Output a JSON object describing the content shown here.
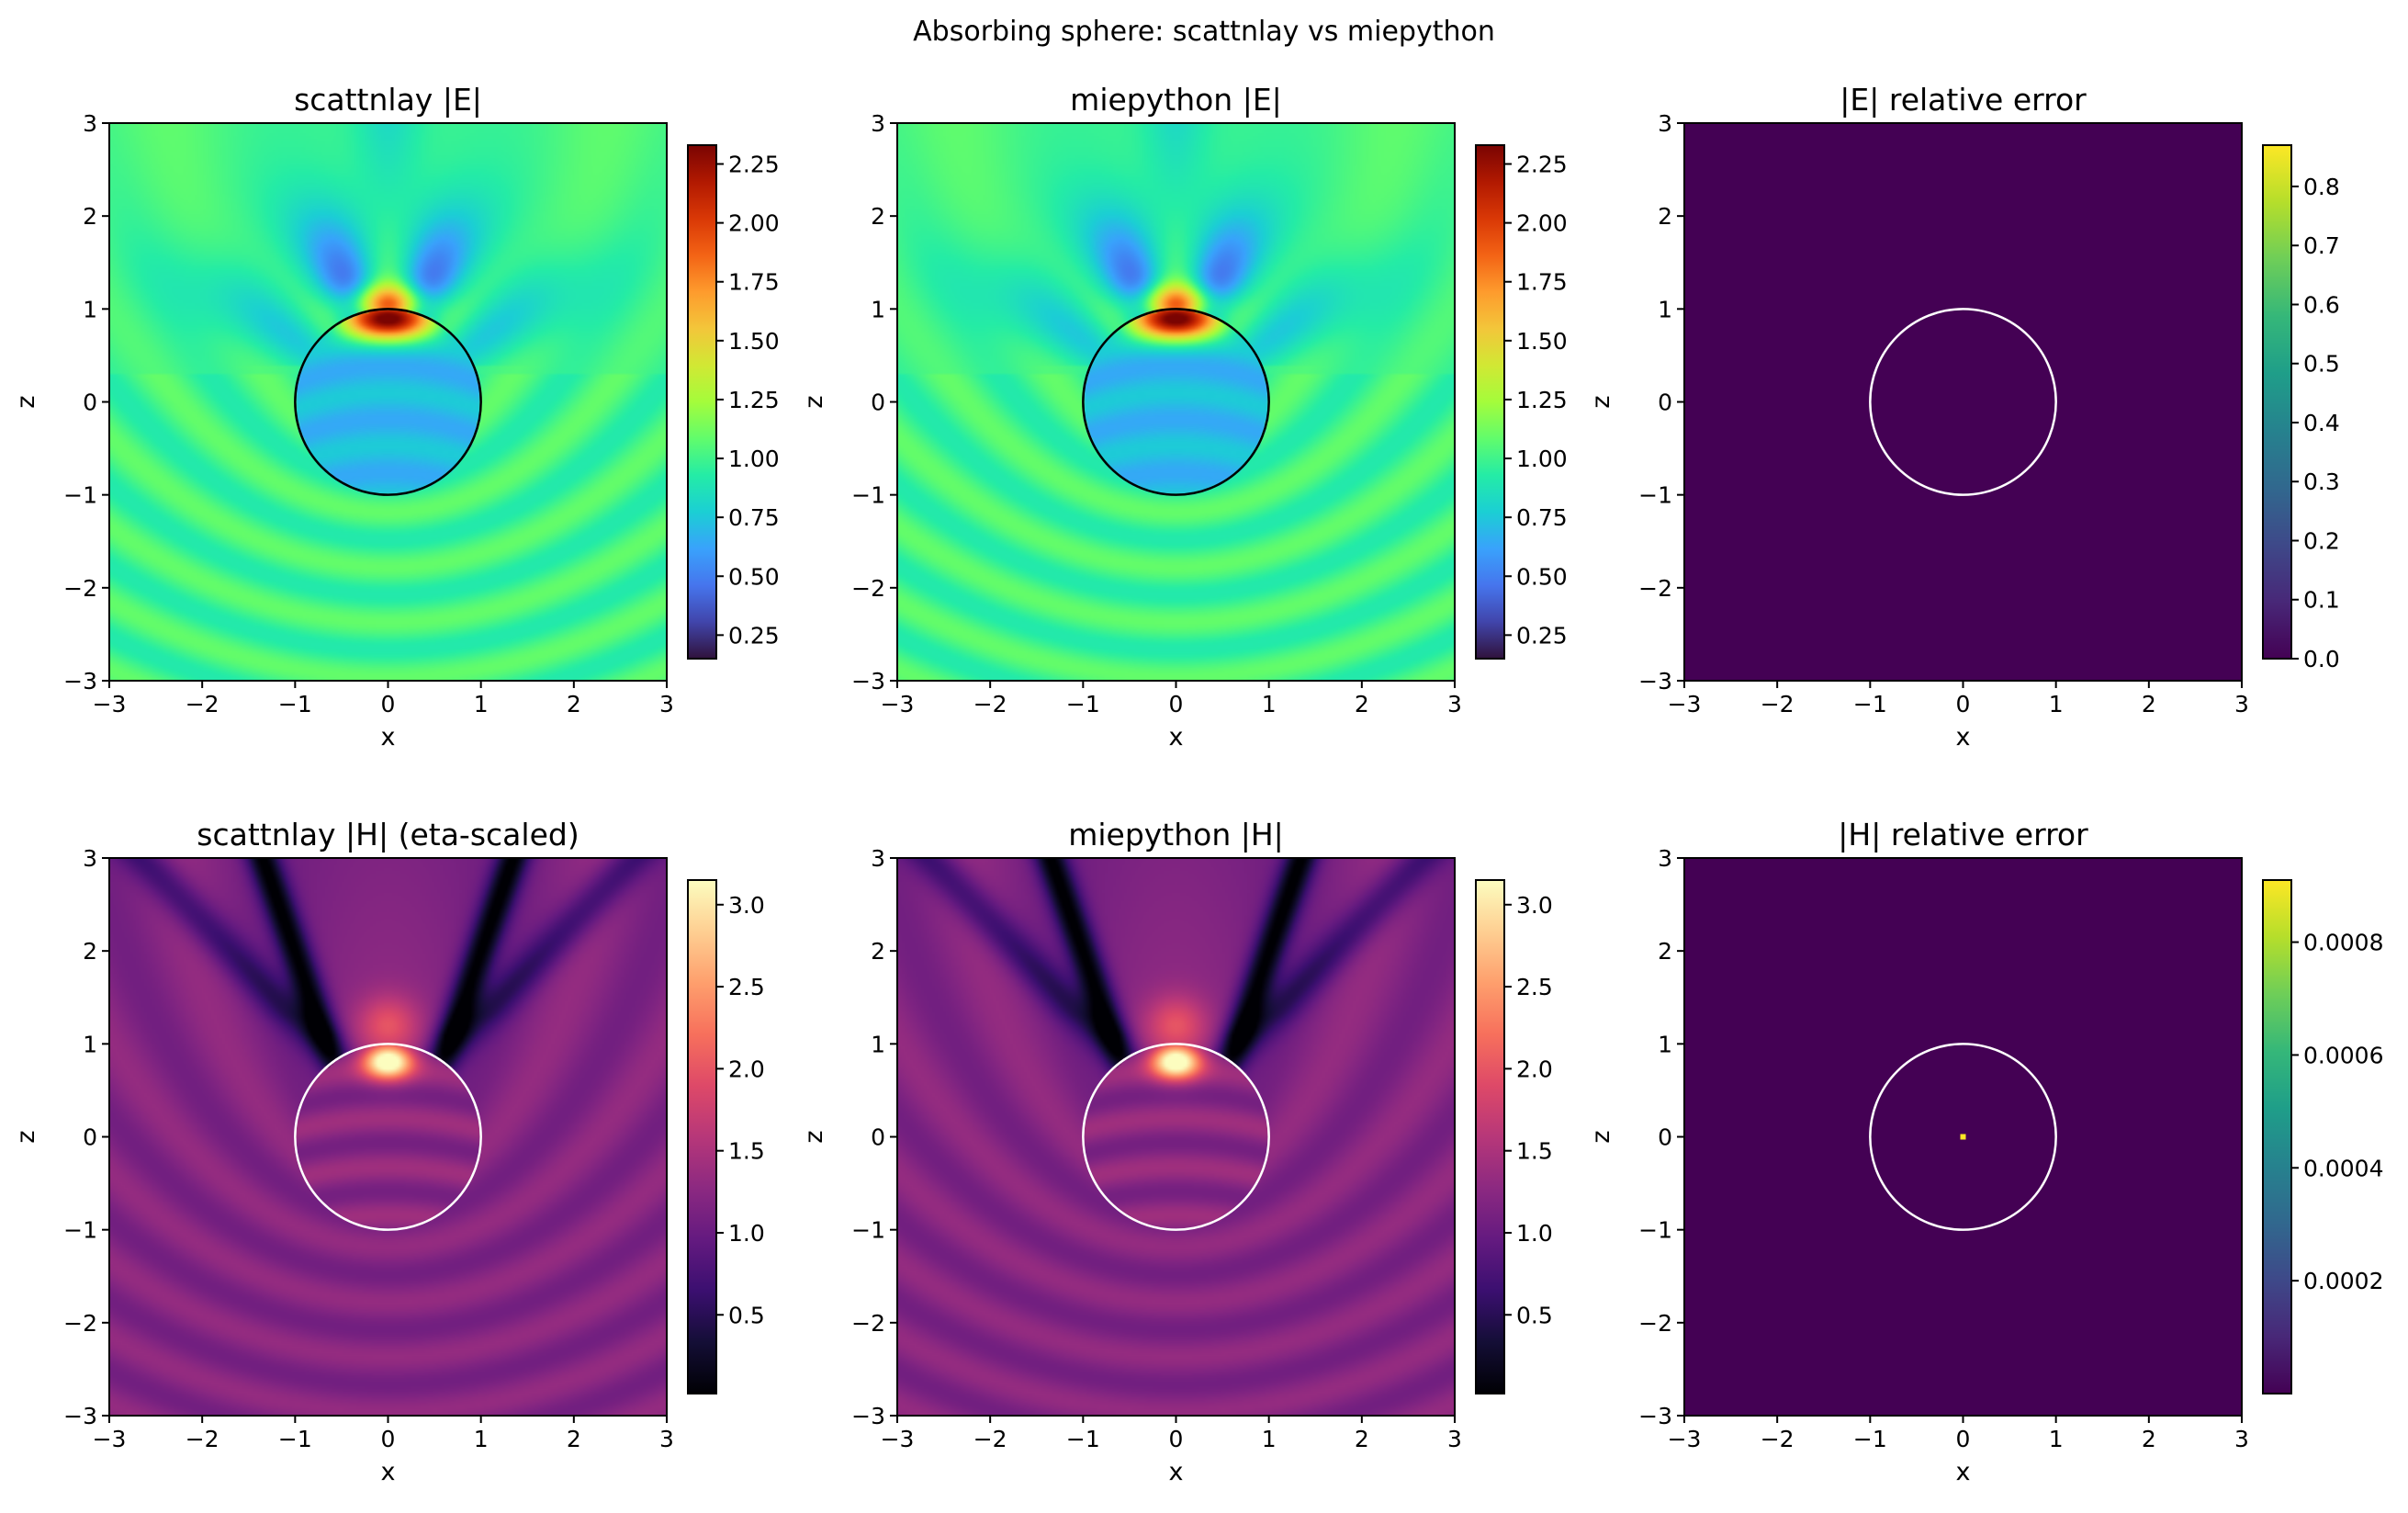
{
  "figure": {
    "title": "Absorbing sphere: scattnlay vs miepython"
  },
  "colors": {
    "turbo": [
      "#30123b",
      "#4145ab",
      "#4675ed",
      "#39a2fc",
      "#1bcfd4",
      "#24eca6",
      "#61fc6c",
      "#a4fc3b",
      "#d1e834",
      "#f3c63a",
      "#fe9b2d",
      "#f36315",
      "#d93806",
      "#b11901",
      "#7a0402"
    ],
    "magma": [
      "#000004",
      "#140e36",
      "#3b0f70",
      "#641a80",
      "#8c2981",
      "#b73779",
      "#de4968",
      "#f7705c",
      "#fe9f6d",
      "#fecf92",
      "#fcfdbf"
    ],
    "viridis": [
      "#440154",
      "#482878",
      "#3e4989",
      "#31688e",
      "#26828e",
      "#1f9e89",
      "#35b779",
      "#6ece58",
      "#b5de2b",
      "#fde725"
    ],
    "circle_dark": "#000000",
    "circle_light": "#ffffff"
  },
  "chart_data": [
    {
      "id": "e-scattnlay",
      "type": "heatmap",
      "title": "scattnlay |E|",
      "xlabel": "x",
      "ylabel": "z",
      "xlim": [
        -3,
        3
      ],
      "ylim": [
        -3,
        3
      ],
      "xticks": [
        "−3",
        "−2",
        "−1",
        "0",
        "1",
        "2",
        "3"
      ],
      "yticks": [
        "−3",
        "−2",
        "−1",
        "0",
        "1",
        "2",
        "3"
      ],
      "colormap": "turbo",
      "field": "E",
      "circle_color": "#000000",
      "sphere_radius": 1,
      "colorbar": {
        "min": 0.15,
        "max": 2.33,
        "ticks": [
          0.25,
          0.5,
          0.75,
          1.0,
          1.25,
          1.5,
          1.75,
          2.0,
          2.25
        ],
        "labels": [
          "0.25",
          "0.50",
          "0.75",
          "1.00",
          "1.25",
          "1.50",
          "1.75",
          "2.00",
          "2.25"
        ]
      }
    },
    {
      "id": "e-miepython",
      "type": "heatmap",
      "title": "miepython |E|",
      "xlabel": "x",
      "ylabel": "z",
      "xlim": [
        -3,
        3
      ],
      "ylim": [
        -3,
        3
      ],
      "xticks": [
        "−3",
        "−2",
        "−1",
        "0",
        "1",
        "2",
        "3"
      ],
      "yticks": [
        "−3",
        "−2",
        "−1",
        "0",
        "1",
        "2",
        "3"
      ],
      "colormap": "turbo",
      "field": "E",
      "circle_color": "#000000",
      "sphere_radius": 1,
      "colorbar": {
        "min": 0.15,
        "max": 2.33,
        "ticks": [
          0.25,
          0.5,
          0.75,
          1.0,
          1.25,
          1.5,
          1.75,
          2.0,
          2.25
        ],
        "labels": [
          "0.25",
          "0.50",
          "0.75",
          "1.00",
          "1.25",
          "1.50",
          "1.75",
          "2.00",
          "2.25"
        ]
      }
    },
    {
      "id": "e-error",
      "type": "heatmap",
      "title": "|E| relative error",
      "xlabel": "x",
      "ylabel": "z",
      "xlim": [
        -3,
        3
      ],
      "ylim": [
        -3,
        3
      ],
      "xticks": [
        "−3",
        "−2",
        "−1",
        "0",
        "1",
        "2",
        "3"
      ],
      "yticks": [
        "−3",
        "−2",
        "−1",
        "0",
        "1",
        "2",
        "3"
      ],
      "colormap": "viridis",
      "field": "error",
      "circle_color": "#ffffff",
      "sphere_radius": 1,
      "colorbar": {
        "min": 0.0,
        "max": 0.87,
        "ticks": [
          0.0,
          0.1,
          0.2,
          0.3,
          0.4,
          0.5,
          0.6,
          0.7,
          0.8
        ],
        "labels": [
          "0.0",
          "0.1",
          "0.2",
          "0.3",
          "0.4",
          "0.5",
          "0.6",
          "0.7",
          "0.8"
        ]
      }
    },
    {
      "id": "h-scattnlay",
      "type": "heatmap",
      "title": "scattnlay |H| (eta-scaled)",
      "xlabel": "x",
      "ylabel": "z",
      "xlim": [
        -3,
        3
      ],
      "ylim": [
        -3,
        3
      ],
      "xticks": [
        "−3",
        "−2",
        "−1",
        "0",
        "1",
        "2",
        "3"
      ],
      "yticks": [
        "−3",
        "−2",
        "−1",
        "0",
        "1",
        "2",
        "3"
      ],
      "colormap": "magma",
      "field": "H",
      "circle_color": "#ffffff",
      "sphere_radius": 1,
      "colorbar": {
        "min": 0.02,
        "max": 3.15,
        "ticks": [
          0.5,
          1.0,
          1.5,
          2.0,
          2.5,
          3.0
        ],
        "labels": [
          "0.5",
          "1.0",
          "1.5",
          "2.0",
          "2.5",
          "3.0"
        ]
      }
    },
    {
      "id": "h-miepython",
      "type": "heatmap",
      "title": "miepython |H|",
      "xlabel": "x",
      "ylabel": "z",
      "xlim": [
        -3,
        3
      ],
      "ylim": [
        -3,
        3
      ],
      "xticks": [
        "−3",
        "−2",
        "−1",
        "0",
        "1",
        "2",
        "3"
      ],
      "yticks": [
        "−3",
        "−2",
        "−1",
        "0",
        "1",
        "2",
        "3"
      ],
      "colormap": "magma",
      "field": "H",
      "circle_color": "#ffffff",
      "sphere_radius": 1,
      "colorbar": {
        "min": 0.02,
        "max": 3.15,
        "ticks": [
          0.5,
          1.0,
          1.5,
          2.0,
          2.5,
          3.0
        ],
        "labels": [
          "0.5",
          "1.0",
          "1.5",
          "2.0",
          "2.5",
          "3.0"
        ]
      }
    },
    {
      "id": "h-error",
      "type": "heatmap",
      "title": "|H| relative error",
      "xlabel": "x",
      "ylabel": "z",
      "xlim": [
        -3,
        3
      ],
      "ylim": [
        -3,
        3
      ],
      "xticks": [
        "−3",
        "−2",
        "−1",
        "0",
        "1",
        "2",
        "3"
      ],
      "yticks": [
        "−3",
        "−2",
        "−1",
        "0",
        "1",
        "2",
        "3"
      ],
      "colormap": "viridis",
      "field": "error",
      "circle_color": "#ffffff",
      "sphere_radius": 1,
      "highlight_point": [
        0,
        0
      ],
      "colorbar": {
        "min": 0.0,
        "max": 0.00091,
        "ticks": [
          0.0002,
          0.0004,
          0.0006,
          0.0008
        ],
        "labels": [
          "0.0002",
          "0.0004",
          "0.0006",
          "0.0008"
        ]
      }
    }
  ]
}
